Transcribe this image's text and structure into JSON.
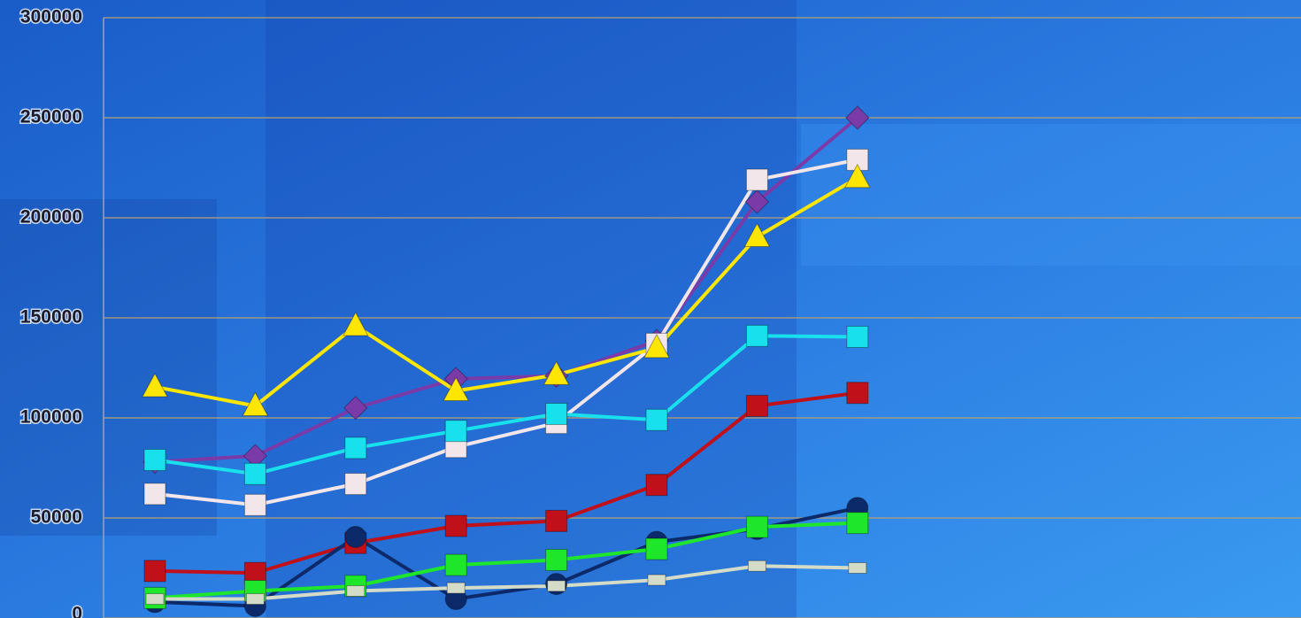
{
  "chart_data": {
    "type": "line",
    "categories": [
      null,
      null,
      null,
      null,
      null,
      null,
      null,
      null
    ],
    "series": [
      {
        "color": "#7a3aa8",
        "marker": "diamond",
        "values": [
          78000,
          81000,
          105000,
          119500,
          121000,
          138500,
          208000,
          250000
        ]
      },
      {
        "color": "#f2e6ea",
        "marker": "square",
        "values": [
          62000,
          56500,
          67000,
          85500,
          97500,
          137000,
          219000,
          229000
        ]
      },
      {
        "color": "#ffe600",
        "marker": "triangle",
        "values": [
          115500,
          106000,
          146000,
          113500,
          121500,
          135000,
          190500,
          220000
        ]
      },
      {
        "color": "#18e0ec",
        "marker": "square",
        "values": [
          79000,
          72000,
          85000,
          93500,
          102000,
          99000,
          141000,
          140500
        ]
      },
      {
        "color": "#c0101a",
        "marker": "square",
        "values": [
          23500,
          22500,
          37500,
          46000,
          48500,
          66500,
          106000,
          112500
        ]
      },
      {
        "color": "#0c2a6a",
        "marker": "circle",
        "values": [
          8000,
          6000,
          40500,
          9500,
          17000,
          38000,
          44500,
          55000
        ]
      },
      {
        "color": "#1ee62a",
        "marker": "square",
        "values": [
          10000,
          13500,
          16000,
          26500,
          29000,
          34500,
          45500,
          47500
        ]
      },
      {
        "color": "#d4dcc8",
        "marker": "flat",
        "values": [
          9500,
          9500,
          13500,
          15000,
          16000,
          19000,
          26000,
          25000
        ]
      }
    ],
    "ylim": [
      0,
      300000
    ],
    "yticks": [
      0,
      50000,
      100000,
      150000,
      200000,
      250000,
      300000
    ],
    "grid": true
  }
}
